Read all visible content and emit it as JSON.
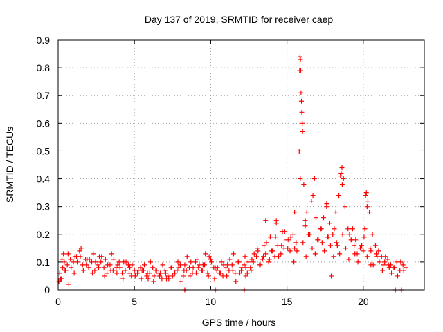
{
  "chart_data": {
    "type": "scatter",
    "title": "Day 137 of 2019, SRMTID for receiver caep",
    "xlabel": "GPS time / hours",
    "ylabel": "SRMTID / TECUs",
    "xlim": [
      0,
      24
    ],
    "ylim": [
      0,
      0.9
    ],
    "xticks": [
      0,
      5,
      10,
      15,
      20
    ],
    "xtick_labels": [
      "0",
      "5",
      "10",
      "15",
      "20"
    ],
    "yticks": [
      0,
      0.1,
      0.2,
      0.3,
      0.4,
      0.5,
      0.6,
      0.7,
      0.8,
      0.9
    ],
    "ytick_labels": [
      "0",
      "0.1",
      "0.2",
      "0.3",
      "0.4",
      "0.5",
      "0.6",
      "0.7",
      "0.8",
      "0.9"
    ],
    "grid": true,
    "marker": "+",
    "series": [
      {
        "name": "SRMTID",
        "color": "#ff0000",
        "x": [
          0.1,
          0.2,
          0.3,
          0.4,
          0.5,
          0.6,
          0.8,
          1.0,
          1.2,
          1.4,
          1.6,
          1.8,
          2.0,
          2.2,
          2.4,
          2.6,
          2.8,
          3.0,
          3.2,
          3.4,
          3.6,
          3.8,
          4.0,
          4.2,
          4.4,
          4.6,
          4.8,
          5.0,
          5.2,
          5.4,
          5.6,
          5.8,
          6.0,
          6.2,
          6.4,
          6.6,
          6.8,
          7.0,
          7.2,
          7.4,
          7.6,
          7.8,
          8.0,
          8.2,
          8.4,
          8.6,
          8.8,
          9.0,
          9.2,
          9.4,
          9.6,
          9.8,
          10.0,
          10.2,
          10.4,
          10.6,
          10.8,
          11.0,
          11.2,
          11.4,
          11.6,
          11.8,
          12.0,
          12.2,
          12.4,
          12.6,
          12.8,
          13.0,
          13.2,
          13.4,
          13.6,
          13.8,
          14.0,
          14.2,
          14.4,
          14.6,
          14.8,
          15.0,
          15.2,
          15.4,
          15.6,
          15.8,
          15.85,
          15.9,
          15.95,
          16.0,
          16.1,
          16.2,
          16.3,
          16.4,
          16.6,
          16.8,
          17.0,
          17.2,
          17.4,
          17.6,
          17.8,
          18.0,
          18.2,
          18.4,
          18.5,
          18.6,
          18.7,
          18.8,
          19.0,
          19.2,
          19.4,
          19.6,
          19.8,
          20.0,
          20.1,
          20.2,
          20.3,
          20.4,
          20.6,
          20.8,
          21.0,
          21.2,
          21.4,
          21.6,
          21.8,
          22.0,
          22.2,
          22.4,
          22.6,
          22.8,
          0.15,
          0.35,
          0.7,
          1.1,
          1.5,
          1.9,
          2.3,
          2.7,
          3.1,
          3.5,
          3.9,
          4.3,
          4.7,
          5.1,
          5.5,
          5.9,
          6.3,
          6.7,
          7.1,
          7.5,
          7.9,
          8.3,
          8.7,
          9.1,
          9.5,
          9.9,
          10.3,
          10.7,
          11.1,
          11.5,
          11.9,
          12.3,
          12.7,
          13.1,
          13.5,
          13.9,
          14.3,
          14.7,
          15.1,
          15.5,
          16.2,
          16.5,
          16.9,
          17.3,
          17.7,
          18.1,
          18.3,
          19.1,
          19.5,
          19.9,
          20.5,
          20.9,
          21.3,
          21.7,
          22.1,
          22.5,
          8.3,
          10.3,
          12.2,
          12.3,
          20.5,
          0.05,
          0.25,
          0.45,
          0.65,
          0.85,
          1.05,
          1.25,
          1.45,
          1.65,
          1.85,
          2.05,
          2.25,
          2.45,
          2.65,
          2.85,
          3.05,
          3.25,
          3.45,
          3.65,
          3.85,
          4.05,
          4.25,
          4.45,
          4.65,
          4.85,
          5.05,
          5.25,
          5.45,
          5.65,
          5.85,
          6.05,
          6.25,
          6.45,
          6.65,
          6.85,
          7.05,
          7.25,
          7.45,
          7.65,
          7.85,
          8.05,
          8.25,
          8.45,
          8.65,
          8.85,
          9.05,
          9.25,
          9.45,
          9.65,
          9.85,
          10.05,
          10.25,
          10.45,
          10.65,
          10.85,
          11.05,
          11.25,
          11.45,
          11.65,
          11.85,
          12.05,
          12.25,
          12.45,
          12.65,
          12.85,
          13.05,
          13.25,
          13.45,
          13.65,
          13.85,
          14.05,
          14.25,
          14.45,
          14.65,
          14.85,
          15.05,
          15.25,
          15.45,
          15.65,
          16.05,
          16.25,
          16.45,
          16.65,
          16.85,
          17.05,
          17.25,
          17.45,
          17.65,
          17.85,
          18.05,
          18.25,
          18.45,
          18.65,
          18.85,
          19.05,
          19.25,
          19.45,
          19.65,
          19.85,
          20.05,
          20.25,
          20.45,
          20.65,
          20.85,
          21.05,
          21.25,
          21.45,
          21.65,
          21.85,
          22.05,
          22.25,
          22.45,
          22.65,
          15.88,
          15.92,
          15.97,
          16.02,
          15.83,
          15.87,
          16.7,
          17.6,
          18.55,
          18.62,
          20.15,
          20.25,
          14.3,
          13.6,
          15.5,
          19.3,
          17.9
        ],
        "y": [
          0.06,
          0.04,
          0.08,
          0.1,
          0.07,
          0.09,
          0.11,
          0.1,
          0.12,
          0.14,
          0.09,
          0.11,
          0.08,
          0.1,
          0.07,
          0.09,
          0.1,
          0.08,
          0.06,
          0.09,
          0.07,
          0.08,
          0.1,
          0.06,
          0.07,
          0.09,
          0.05,
          0.07,
          0.06,
          0.08,
          0.07,
          0.05,
          0.06,
          0.08,
          0.07,
          0.06,
          0.04,
          0.07,
          0.05,
          0.08,
          0.06,
          0.07,
          0.09,
          0.05,
          0.07,
          0.08,
          0.06,
          0.1,
          0.08,
          0.07,
          0.09,
          0.06,
          0.11,
          0.08,
          0.07,
          0.06,
          0.05,
          0.08,
          0.07,
          0.09,
          0.06,
          0.1,
          0.07,
          0.09,
          0.06,
          0.08,
          0.1,
          0.12,
          0.09,
          0.11,
          0.13,
          0.1,
          0.14,
          0.12,
          0.16,
          0.13,
          0.15,
          0.18,
          0.14,
          0.2,
          0.17,
          0.5,
          0.84,
          0.79,
          0.68,
          0.6,
          0.38,
          0.25,
          0.28,
          0.2,
          0.32,
          0.4,
          0.18,
          0.22,
          0.26,
          0.3,
          0.24,
          0.2,
          0.28,
          0.34,
          0.41,
          0.44,
          0.4,
          0.3,
          0.22,
          0.18,
          0.16,
          0.13,
          0.15,
          0.14,
          0.22,
          0.35,
          0.32,
          0.28,
          0.2,
          0.16,
          0.14,
          0.12,
          0.1,
          0.11,
          0.09,
          0.08,
          0.1,
          0.07,
          0.09,
          0.08,
          0.04,
          0.13,
          0.02,
          0.12,
          0.15,
          0.11,
          0.13,
          0.12,
          0.11,
          0.13,
          0.09,
          0.1,
          0.08,
          0.06,
          0.07,
          0.04,
          0.05,
          0.06,
          0.04,
          0.05,
          0.08,
          0.09,
          0.1,
          0.11,
          0.09,
          0.12,
          0.08,
          0.1,
          0.09,
          0.13,
          0.06,
          0.08,
          0.11,
          0.14,
          0.16,
          0.19,
          0.25,
          0.21,
          0.18,
          0.15,
          0.23,
          0.2,
          0.26,
          0.17,
          0.19,
          0.22,
          0.16,
          0.2,
          0.18,
          0.16,
          0.14,
          0.12,
          0.09,
          0.08,
          0.0,
          0.0,
          0.0,
          0.0,
          0.0,
          0.05,
          0.09,
          0.03,
          0.11,
          0.07,
          0.13,
          0.08,
          0.06,
          0.1,
          0.12,
          0.07,
          0.09,
          0.11,
          0.06,
          0.1,
          0.08,
          0.12,
          0.05,
          0.09,
          0.07,
          0.11,
          0.06,
          0.08,
          0.04,
          0.1,
          0.06,
          0.09,
          0.05,
          0.07,
          0.04,
          0.09,
          0.06,
          0.1,
          0.03,
          0.07,
          0.05,
          0.09,
          0.06,
          0.04,
          0.08,
          0.06,
          0.1,
          0.03,
          0.07,
          0.12,
          0.05,
          0.08,
          0.06,
          0.09,
          0.07,
          0.13,
          0.05,
          0.1,
          0.04,
          0.08,
          0.06,
          0.09,
          0.05,
          0.11,
          0.07,
          0.03,
          0.1,
          0.08,
          0.12,
          0.1,
          0.07,
          0.13,
          0.15,
          0.09,
          0.12,
          0.17,
          0.11,
          0.14,
          0.19,
          0.12,
          0.16,
          0.21,
          0.15,
          0.19,
          0.1,
          0.14,
          0.17,
          0.12,
          0.2,
          0.15,
          0.13,
          0.18,
          0.22,
          0.14,
          0.19,
          0.16,
          0.12,
          0.17,
          0.13,
          0.2,
          0.15,
          0.11,
          0.18,
          0.13,
          0.1,
          0.16,
          0.19,
          0.12,
          0.15,
          0.09,
          0.13,
          0.1,
          0.07,
          0.12,
          0.09,
          0.06,
          0.08,
          0.05,
          0.1,
          0.07,
          0.83,
          0.71,
          0.64,
          0.57,
          0.79,
          0.4,
          0.34,
          0.31,
          0.42,
          0.38,
          0.34,
          0.3,
          0.24,
          0.25,
          0.28,
          0.22,
          0.05
        ]
      }
    ]
  }
}
